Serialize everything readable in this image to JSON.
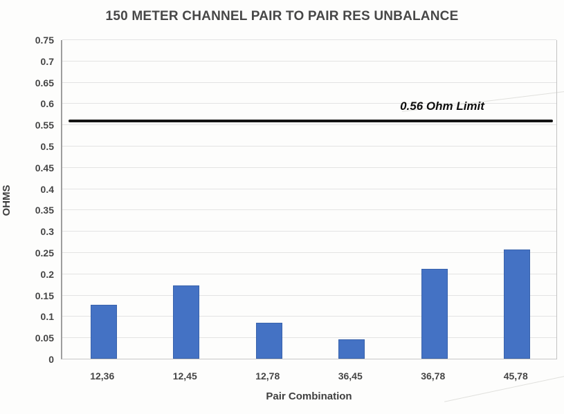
{
  "chart_data": {
    "type": "bar",
    "title": "150 METER CHANNEL PAIR TO PAIR RES UNBALANCE",
    "categories": [
      "12,36",
      "12,45",
      "12,78",
      "36,45",
      "36,78",
      "45,78"
    ],
    "values": [
      0.126,
      0.172,
      0.085,
      0.046,
      0.211,
      0.257
    ],
    "xlabel": "Pair Combination",
    "ylabel": "OHMS",
    "ylim": [
      0,
      0.75
    ],
    "ytick_step": 0.05,
    "ytick_labels": [
      "0",
      "0.05",
      "0.1",
      "0.15",
      "0.2",
      "0.25",
      "0.3",
      "0.35",
      "0.4",
      "0.45",
      "0.5",
      "0.55",
      "0.6",
      "0.65",
      "0.7",
      "0.75"
    ],
    "grid": "horizontal",
    "legend": "none",
    "bar_color": "#4472C4",
    "limit_line": {
      "value": 0.56,
      "label": "0.56 Ohm Limit",
      "color": "#141414"
    }
  }
}
